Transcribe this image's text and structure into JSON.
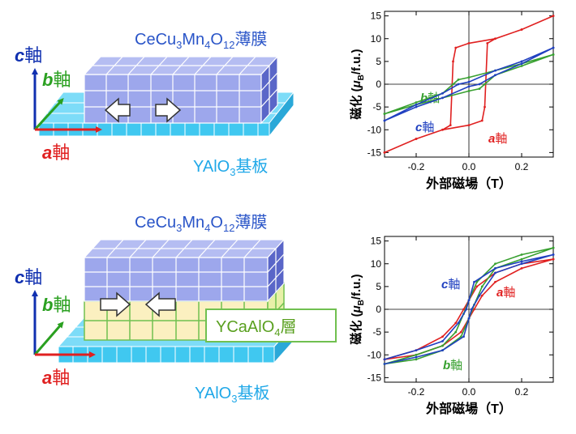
{
  "colors": {
    "c_axis": "#1030b0",
    "b_axis": "#2aa020",
    "a_axis": "#e02020",
    "film_front": "#9da7ec",
    "film_top": "#b5bdf2",
    "film_side": "#5a66c8",
    "substrate": "#40c8f0",
    "substrate_top": "#7ddcf8",
    "buffer": "#fbf0c0",
    "buffer_line": "#70c050",
    "label_blue": "#2a55c8",
    "label_cyan": "#20a8e8",
    "label_green": "#5aa020",
    "curve_red": "#e02020",
    "curve_green": "#38a030",
    "curve_blue": "#2040c0"
  },
  "diagram_top": {
    "film_label_main": "CeCu",
    "film_label_s1": "3",
    "film_label_mn": "Mn",
    "film_label_s2": "4",
    "film_label_o": "O",
    "film_label_s3": "12",
    "film_label_suffix": "薄膜",
    "substrate_label_main": "YAlO",
    "substrate_label_sub": "3",
    "substrate_label_suffix": "基板",
    "axis_c_letter": "c",
    "axis_c_suffix": "軸",
    "axis_b_letter": "b",
    "axis_b_suffix": "軸",
    "axis_a_letter": "a",
    "axis_a_suffix": "軸"
  },
  "diagram_bottom": {
    "film_label_main": "CeCu",
    "film_label_s1": "3",
    "film_label_mn": "Mn",
    "film_label_s2": "4",
    "film_label_o": "O",
    "film_label_s3": "12",
    "film_label_suffix": "薄膜",
    "buffer_label_main": "YCaAlO",
    "buffer_label_sub": "4",
    "buffer_label_suffix": "層",
    "substrate_label_main": "YAlO",
    "substrate_label_sub": "3",
    "substrate_label_suffix": "基板",
    "axis_c_letter": "c",
    "axis_c_suffix": "軸",
    "axis_b_letter": "b",
    "axis_b_suffix": "軸",
    "axis_a_letter": "a",
    "axis_a_suffix": "軸"
  },
  "chart_data": [
    {
      "type": "line",
      "title": "",
      "xlabel": "外部磁場（T）",
      "ylabel_prefix": "磁化 (",
      "ylabel_mu": "μ",
      "ylabel_sub": "B",
      "ylabel_suffix": "/f.u.)",
      "xlim": [
        -0.32,
        0.32
      ],
      "ylim": [
        -16,
        16
      ],
      "xticks": [
        -0.2,
        0.0,
        0.2
      ],
      "xtick_labels": [
        "-0.2",
        "0.0",
        "0.2"
      ],
      "yticks": [
        -15,
        -10,
        -5,
        0,
        5,
        10,
        15
      ],
      "ytick_labels": [
        "-15",
        "-10",
        "-5",
        "0",
        "5",
        "10",
        "15"
      ],
      "series": [
        {
          "name": "a軸",
          "letter": "a",
          "suffix": "軸",
          "color": "#e02020",
          "label_pos": "lower-right",
          "x": [
            -0.32,
            -0.2,
            -0.1,
            -0.07,
            -0.06,
            -0.05,
            0.0,
            0.1,
            0.2,
            0.32,
            0.32,
            0.2,
            0.1,
            0.07,
            0.06,
            0.05,
            0.0,
            -0.1,
            -0.2,
            -0.32
          ],
          "y": [
            -15,
            -12,
            -10,
            -9,
            5,
            8,
            9,
            10,
            12,
            15,
            15,
            12,
            10,
            9,
            -5,
            -8,
            -9,
            -10,
            -12,
            -15
          ]
        },
        {
          "name": "b軸",
          "letter": "b",
          "suffix": "軸",
          "color": "#38a030",
          "label_pos": "left",
          "x": [
            -0.32,
            -0.2,
            -0.1,
            -0.06,
            -0.04,
            0.0,
            0.1,
            0.2,
            0.32,
            0.32,
            0.2,
            0.1,
            0.06,
            0.04,
            0.0,
            -0.1,
            -0.2,
            -0.32
          ],
          "y": [
            -6.5,
            -4,
            -2,
            0,
            1,
            1.5,
            3,
            4.5,
            6.5,
            6.5,
            4,
            2,
            0,
            -1,
            -1.5,
            -3,
            -4.5,
            -6.5
          ]
        },
        {
          "name": "c軸",
          "letter": "c",
          "suffix": "軸",
          "color": "#2040c0",
          "label_pos": "left",
          "x": [
            -0.32,
            -0.2,
            -0.1,
            -0.04,
            0.0,
            0.1,
            0.2,
            0.32,
            0.32,
            0.2,
            0.1,
            0.04,
            0.0,
            -0.1,
            -0.2,
            -0.32
          ],
          "y": [
            -8,
            -4.5,
            -2,
            0,
            0.5,
            3,
            5,
            8,
            8,
            4.5,
            2,
            0,
            -0.5,
            -3,
            -5,
            -8
          ]
        }
      ]
    },
    {
      "type": "line",
      "title": "",
      "xlabel": "外部磁場（T）",
      "ylabel_prefix": "磁化 (",
      "ylabel_mu": "μ",
      "ylabel_sub": "B",
      "ylabel_suffix": "/f.u.)",
      "xlim": [
        -0.32,
        0.32
      ],
      "ylim": [
        -16,
        16
      ],
      "xticks": [
        -0.2,
        0.0,
        0.2
      ],
      "xtick_labels": [
        "-0.2",
        "0.0",
        "0.2"
      ],
      "yticks": [
        -15,
        -10,
        -5,
        0,
        5,
        10,
        15
      ],
      "ytick_labels": [
        "-15",
        "-10",
        "-5",
        "0",
        "5",
        "10",
        "15"
      ],
      "series": [
        {
          "name": "a軸",
          "letter": "a",
          "suffix": "軸",
          "color": "#e02020",
          "label_pos": "right",
          "x": [
            -0.32,
            -0.2,
            -0.1,
            -0.05,
            -0.02,
            0.0,
            0.03,
            0.1,
            0.2,
            0.32,
            0.32,
            0.2,
            0.1,
            0.05,
            0.02,
            0.0,
            -0.03,
            -0.1,
            -0.2,
            -0.32
          ],
          "y": [
            -11,
            -9,
            -6,
            -3,
            0,
            2,
            5,
            8,
            10,
            11,
            11,
            9,
            6,
            3,
            0,
            -2,
            -5,
            -8,
            -10,
            -11
          ]
        },
        {
          "name": "b軸",
          "letter": "b",
          "suffix": "軸",
          "color": "#38a030",
          "label_pos": "lower",
          "x": [
            -0.32,
            -0.2,
            -0.1,
            -0.05,
            -0.02,
            0.0,
            0.03,
            0.1,
            0.2,
            0.32,
            0.32,
            0.2,
            0.1,
            0.05,
            0.02,
            0.0,
            -0.03,
            -0.1,
            -0.2,
            -0.32
          ],
          "y": [
            -12,
            -10,
            -8,
            -5,
            -1,
            2,
            6,
            10,
            12,
            13.5,
            13.5,
            11,
            9,
            5,
            1,
            -2,
            -6,
            -9,
            -11,
            -12
          ]
        },
        {
          "name": "c軸",
          "letter": "c",
          "suffix": "軸",
          "color": "#2040c0",
          "label_pos": "upper-left",
          "x": [
            -0.32,
            -0.2,
            -0.1,
            -0.04,
            -0.01,
            0.0,
            0.02,
            0.1,
            0.2,
            0.32,
            0.32,
            0.2,
            0.1,
            0.04,
            0.01,
            0.0,
            -0.02,
            -0.1,
            -0.2,
            -0.32
          ],
          "y": [
            -11,
            -9,
            -7,
            -3,
            0,
            2,
            6,
            9,
            10.5,
            12,
            12,
            10,
            8,
            3,
            0,
            -2,
            -6,
            -9,
            -10.5,
            -12
          ]
        }
      ]
    }
  ]
}
